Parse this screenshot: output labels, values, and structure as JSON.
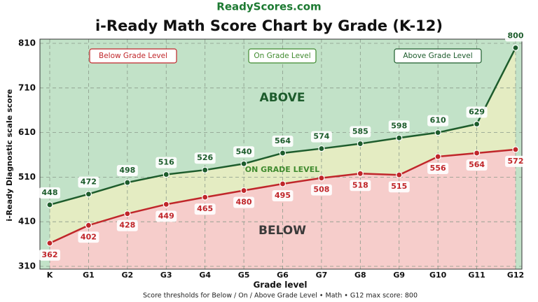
{
  "site": "ReadyScores.com",
  "chart_data": {
    "type": "line",
    "title": "i-Ready Math Score Chart by Grade (K-12)",
    "y_label": "i-Ready Diagnostic scale score",
    "x_label": "Grade level",
    "note": "Score thresholds for Below / On / Above Grade Level • Math • G12 max score: 800",
    "categories": [
      "K",
      "G1",
      "G2",
      "G3",
      "G4",
      "G5",
      "G6",
      "G7",
      "G8",
      "G9",
      "G10",
      "G11",
      "G12"
    ],
    "series": [
      {
        "color": "#1d5c2c",
        "values": [
          448,
          472,
          498,
          516,
          526,
          540,
          564,
          574,
          585,
          598,
          610,
          629,
          800
        ]
      },
      {
        "color": "#c0262a",
        "values": [
          362,
          402,
          428,
          449,
          465,
          480,
          495,
          508,
          518,
          515,
          556,
          564,
          572
        ]
      }
    ],
    "zones": [
      {
        "name": "Below Grade Level",
        "label": "BELOW",
        "color": "#f6cdcb",
        "text_color": "#c0262a"
      },
      {
        "name": "On Grade Level",
        "label": "ON GRADE LEVEL",
        "color": "#e4ecc2",
        "text_color": "#3f8a2e"
      },
      {
        "name": "Above Grade Level",
        "label": "ABOVE",
        "color": "#c2e2c8",
        "text_color": "#1d5c2c"
      }
    ],
    "ylim": [
      310,
      810
    ],
    "yticks": [
      310,
      410,
      510,
      610,
      710,
      810
    ],
    "grid": true
  }
}
